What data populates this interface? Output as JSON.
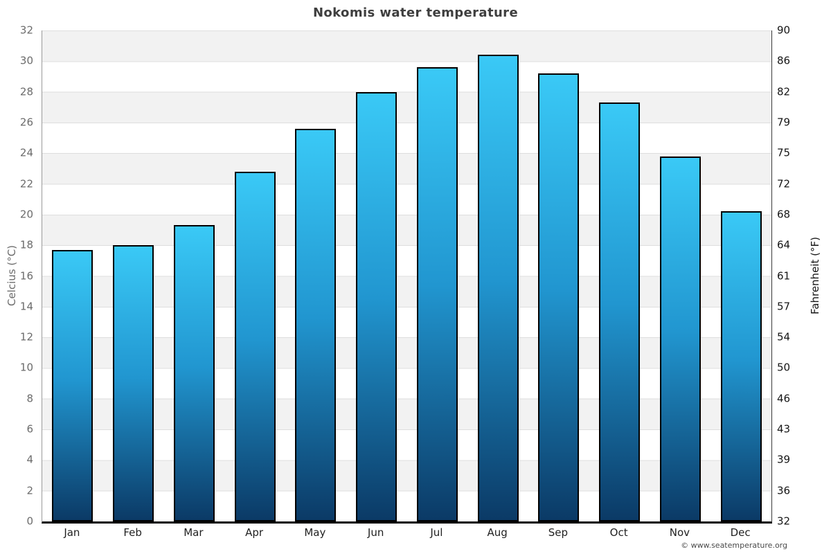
{
  "page": {
    "attribution": "© www.seatemperature.org"
  },
  "chart_data": {
    "type": "bar",
    "title": "Nokomis water temperature",
    "categories": [
      "Jan",
      "Feb",
      "Mar",
      "Apr",
      "May",
      "Jun",
      "Jul",
      "Aug",
      "Sep",
      "Oct",
      "Nov",
      "Dec"
    ],
    "series": [
      {
        "name": "Water temperature",
        "unit": "°C",
        "values": [
          17.7,
          18.0,
          19.3,
          22.8,
          25.6,
          28.0,
          29.6,
          30.4,
          29.2,
          27.3,
          23.8,
          20.2
        ]
      }
    ],
    "xlabel": "",
    "ylabel_left": "Celcius (°C)",
    "ylabel_right": "Fahrenheit (°F)",
    "ylim_c": [
      0,
      32
    ],
    "yticks_c": [
      32,
      30,
      28,
      26,
      24,
      22,
      20,
      18,
      16,
      14,
      12,
      10,
      8,
      6,
      4,
      2,
      0
    ],
    "yticks_f": [
      90,
      86,
      82,
      79,
      75,
      72,
      68,
      64,
      61,
      57,
      54,
      50,
      46,
      43,
      39,
      36,
      32
    ],
    "grid": "horizontal bands every 2°C alternating gray/white with thin gridlines",
    "legend": "none",
    "colors": {
      "bar_top": "#3ac9f6",
      "bar_mid": "#2196d0",
      "bar_bottom": "#0b3a66",
      "bar_border": "#000000",
      "band_gray": "#f2f2f2",
      "band_white": "#ffffff",
      "gridline": "#dedede",
      "axis_left_line": "#9a9a9a",
      "axis_right_line": "#3a3a3a",
      "axis_bottom_line": "#000000",
      "tick_left": "#6b6b6b",
      "tick_right": "#161616",
      "title": "#3e3e3e"
    }
  }
}
